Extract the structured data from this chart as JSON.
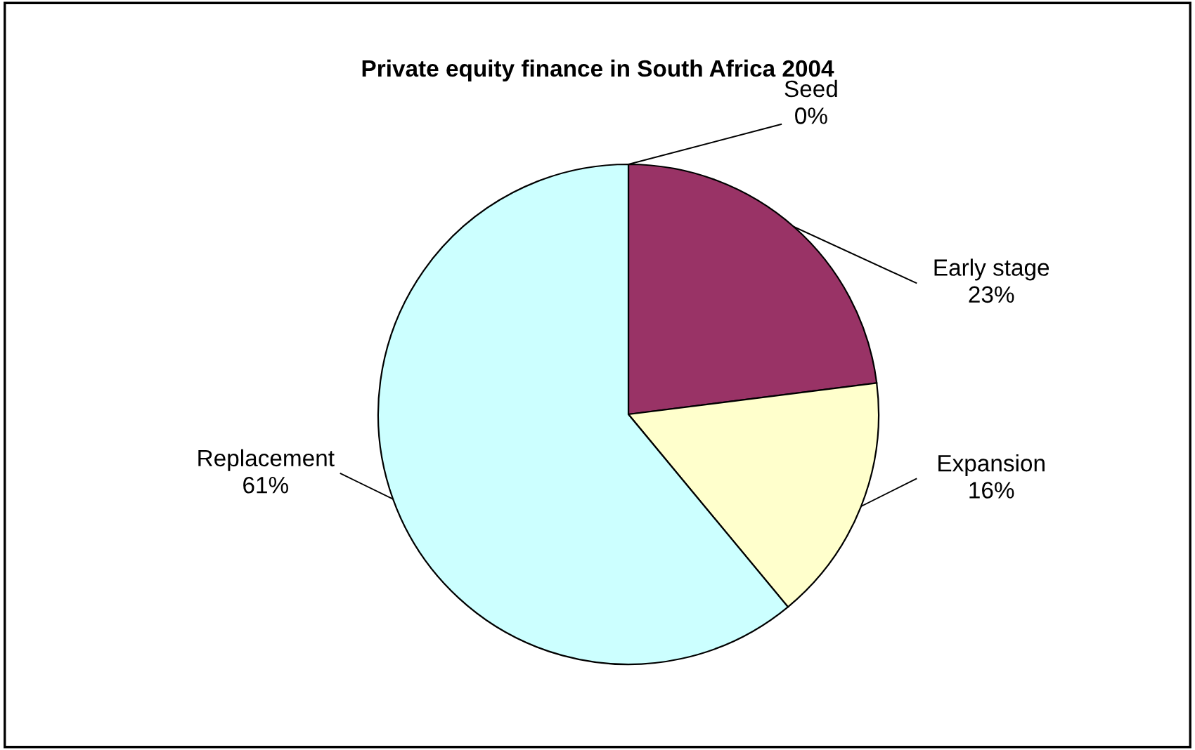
{
  "chart_data": {
    "type": "pie",
    "title": "Private equity finance in South Africa 2004",
    "categories": [
      "Seed",
      "Early stage",
      "Expansion",
      "Replacement"
    ],
    "values": [
      0,
      23,
      16,
      61
    ],
    "value_labels": [
      "0%",
      "23%",
      "16%",
      "61%"
    ],
    "colors": [
      "#9999ff",
      "#993366",
      "#ffffcc",
      "#ccffff"
    ],
    "legend": false
  }
}
